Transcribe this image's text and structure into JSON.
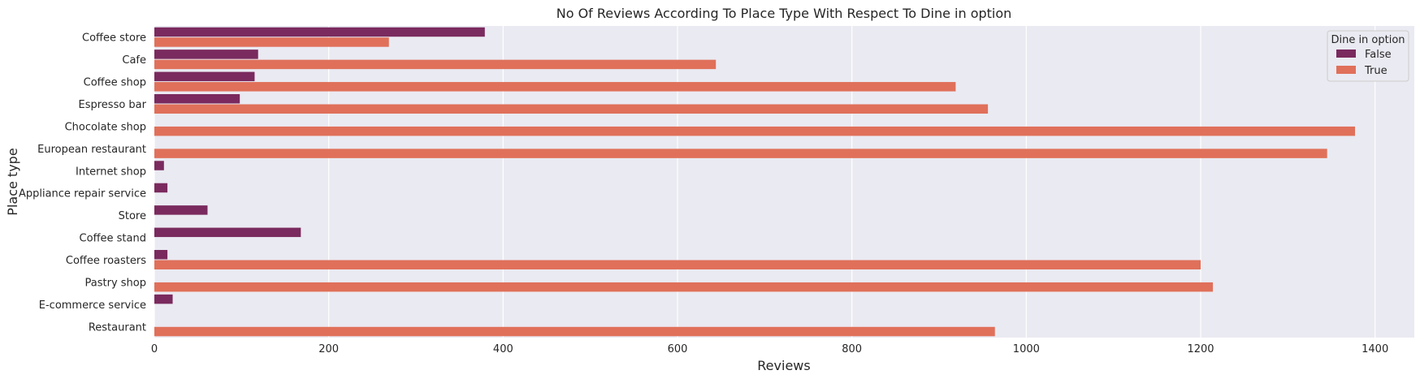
{
  "chart_data": {
    "type": "bar",
    "orientation": "horizontal",
    "title": "No Of Reviews According To Place Type With Respect To Dine in option",
    "xlabel": "Reviews",
    "ylabel": "Place type",
    "xlim": [
      0,
      1445
    ],
    "xticks": [
      0,
      200,
      400,
      600,
      800,
      1000,
      1200,
      1400
    ],
    "grid": true,
    "categories": [
      "Coffee store",
      "Cafe",
      "Coffee shop",
      "Espresso bar",
      "Chocolate shop",
      "European restaurant",
      "Internet shop",
      "Appliance repair service",
      "Store",
      "Coffee stand",
      "Coffee roasters",
      "Pastry shop",
      "E-commerce service",
      "Restaurant"
    ],
    "series": [
      {
        "name": "False",
        "color": "#7a2a5e",
        "values": [
          379,
          119,
          115,
          98,
          null,
          null,
          11,
          15,
          61,
          168,
          15,
          null,
          21,
          null
        ]
      },
      {
        "name": "True",
        "color": "#e0705a",
        "values": [
          269,
          644,
          919,
          956,
          1377,
          1345,
          null,
          null,
          null,
          null,
          1200,
          1214,
          null,
          964
        ]
      }
    ],
    "legend": {
      "title": "Dine in option",
      "position": "top-right"
    }
  },
  "style": {
    "plot_background": "#eaeaf2",
    "grid_color": "#ffffff"
  }
}
